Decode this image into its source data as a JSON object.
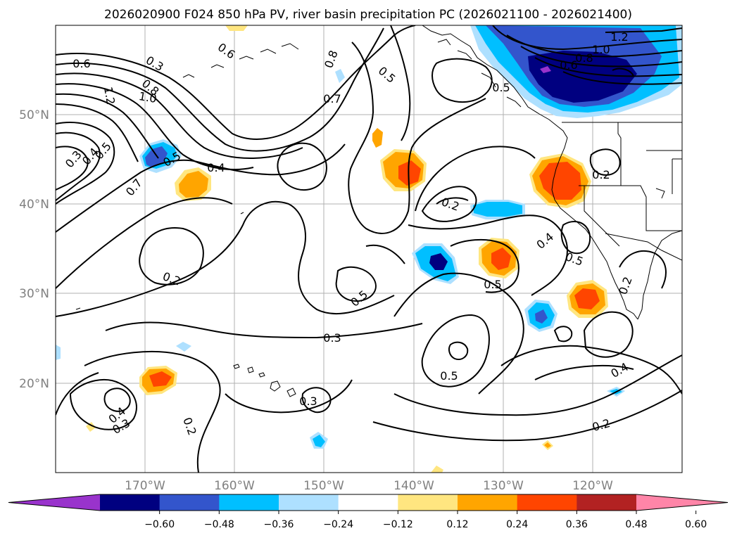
{
  "title": "2026020900 F024 850 hPa PV, river basin precipitation PC (2026021100 - 2026021400)",
  "map": {
    "lat_labels": [
      "50°N",
      "40°N",
      "30°N",
      "20°N"
    ],
    "lon_labels": [
      "170°W",
      "160°W",
      "150°W",
      "140°W",
      "130°W",
      "120°W"
    ],
    "contour_labels": [
      {
        "text": "1.2",
        "rot": 0
      },
      {
        "text": "1.0",
        "rot": 0
      },
      {
        "text": "0.8",
        "rot": 0
      },
      {
        "text": "0.6",
        "rot": 0
      },
      {
        "text": "0.6",
        "rot": 35
      },
      {
        "text": "0.8",
        "rot": -70
      },
      {
        "text": "0.5",
        "rot": 40
      },
      {
        "text": "0.7",
        "rot": 0
      },
      {
        "text": "0.6",
        "rot": 0
      },
      {
        "text": "0.3",
        "rot": 30
      },
      {
        "text": "0.8",
        "rot": 40
      },
      {
        "text": "1.0",
        "rot": 10
      },
      {
        "text": "1.2",
        "rot": 80
      },
      {
        "text": "0.3",
        "rot": -50
      },
      {
        "text": "0.4",
        "rot": -50
      },
      {
        "text": "0.5",
        "rot": -50
      },
      {
        "text": "0.5",
        "rot": -30
      },
      {
        "text": "0.4",
        "rot": 0
      },
      {
        "text": "0.7",
        "rot": -50
      },
      {
        "text": "0.2",
        "rot": 20
      },
      {
        "text": "0.2",
        "rot": 0
      },
      {
        "text": "0.2",
        "rot": 20
      },
      {
        "text": "0.4",
        "rot": -40
      },
      {
        "text": "0.5",
        "rot": 20
      },
      {
        "text": "0.2",
        "rot": -70
      },
      {
        "text": "0.5",
        "rot": 0
      },
      {
        "text": "0.5",
        "rot": -40
      },
      {
        "text": "0.3",
        "rot": 0
      },
      {
        "text": "0.5",
        "rot": 0
      },
      {
        "text": "0.4",
        "rot": -30
      },
      {
        "text": "0.3",
        "rot": 0
      },
      {
        "text": "0.4",
        "rot": -40
      },
      {
        "text": "0.3",
        "rot": -30
      },
      {
        "text": "0.2",
        "rot": 70
      },
      {
        "text": "0.2",
        "rot": -15
      },
      {
        "text": "0.5",
        "rot": 0
      }
    ]
  },
  "colorbar": {
    "tick_labels": [
      "−0.60",
      "−0.48",
      "−0.36",
      "−0.24",
      "−0.12",
      "0.12",
      "0.24",
      "0.36",
      "0.48",
      "0.60"
    ],
    "colors": [
      "#9933cc",
      "#000080",
      "#3355cc",
      "#00bfff",
      "#aee0ff",
      "#ffffff",
      "#ffe680",
      "#ffa500",
      "#ff4500",
      "#b22222",
      "#ff85a8"
    ]
  }
}
